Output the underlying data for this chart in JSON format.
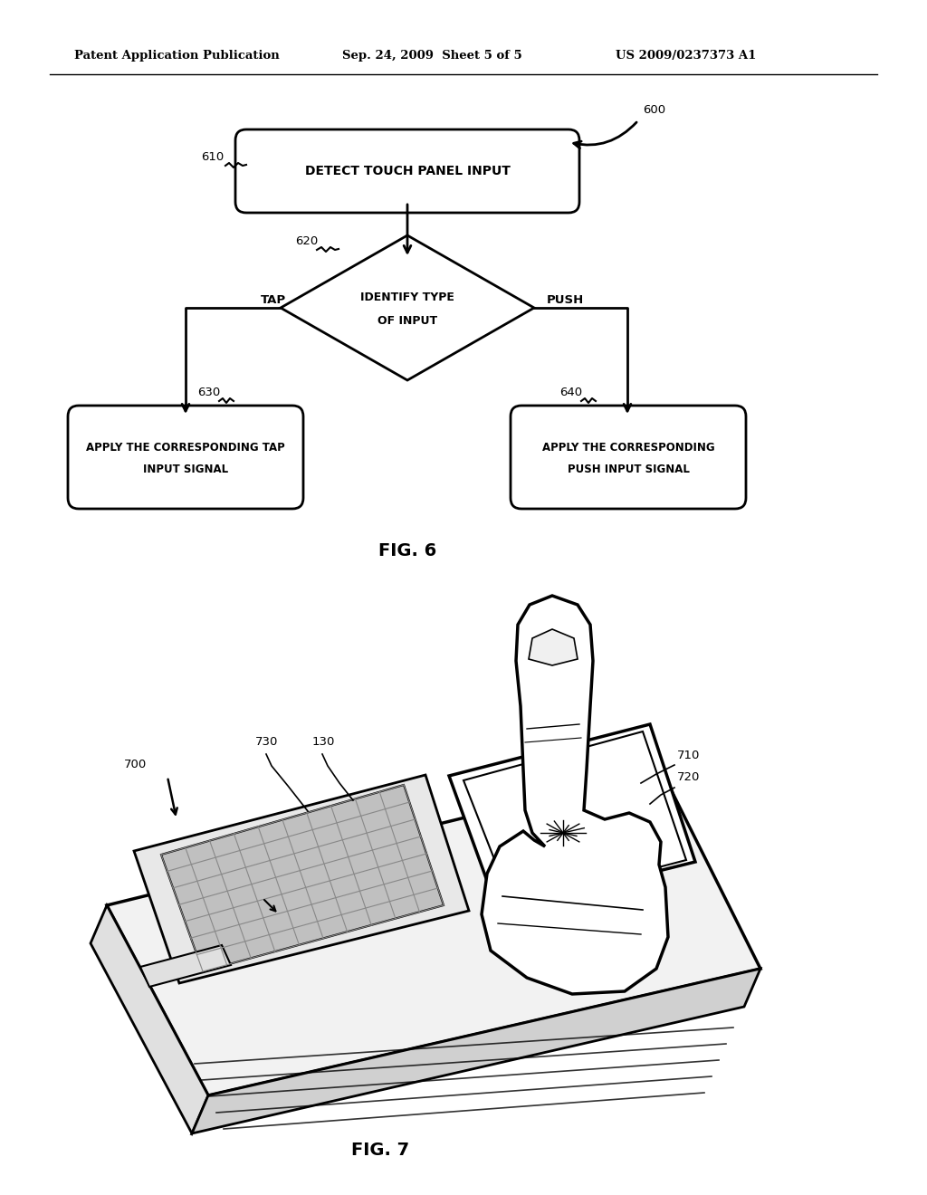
{
  "header_left": "Patent Application Publication",
  "header_mid": "Sep. 24, 2009  Sheet 5 of 5",
  "header_right": "US 2009/0237373 A1",
  "fig6_label": "FIG. 6",
  "fig7_label": "FIG. 7",
  "bg_color": "#ffffff",
  "line_color": "#000000",
  "text_color": "#000000",
  "box1_text": "DETECT TOUCH PANEL INPUT",
  "box1_label": "610",
  "diamond_text1": "IDENTIFY TYPE",
  "diamond_text2": "OF INPUT",
  "diamond_label": "620",
  "tap_label": "TAP",
  "push_label": "PUSH",
  "box2_text1": "APPLY THE CORRESPONDING TAP",
  "box2_text2": "INPUT SIGNAL",
  "box2_label": "630",
  "box3_text1": "APPLY THE CORRESPONDING",
  "box3_text2": "PUSH INPUT SIGNAL",
  "box3_label": "640",
  "label_600": "600",
  "label_700": "700",
  "label_710": "710",
  "label_720": "720",
  "label_730": "730",
  "label_130": "130"
}
